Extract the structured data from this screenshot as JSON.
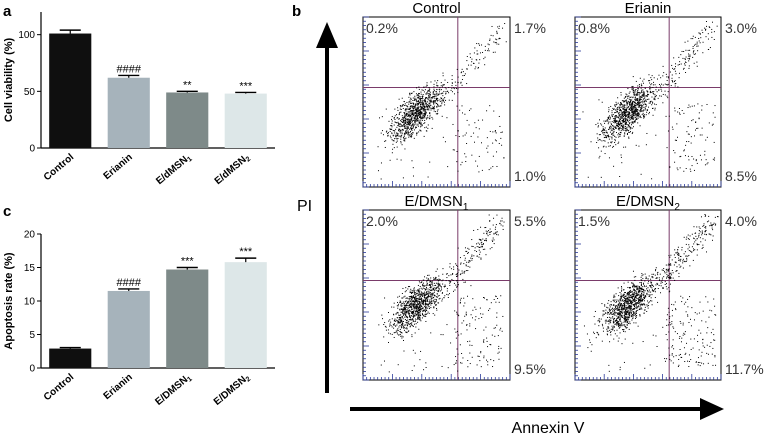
{
  "chart_data": [
    {
      "panel": "a",
      "type": "bar",
      "ylabel": "Cell viability (%)",
      "ylim": [
        0,
        120
      ],
      "yticks": [
        0,
        50,
        100
      ],
      "categories": [
        "Control",
        "Erianin",
        "E/dMSN1",
        "E/dMSN2"
      ],
      "values": [
        101,
        62,
        49,
        48
      ],
      "errors": [
        3,
        2,
        1,
        1
      ],
      "colors": [
        "#0f0f0f",
        "#a6b3bb",
        "#7e8a89",
        "#dde7e8"
      ],
      "annotations": [
        "",
        "####",
        "**",
        "***"
      ]
    },
    {
      "panel": "c",
      "type": "bar",
      "ylabel": "Apoptosis rate (%)",
      "ylim": [
        0,
        20
      ],
      "yticks": [
        0,
        5,
        10,
        15,
        20
      ],
      "categories": [
        "Control",
        "Erianin",
        "E/DMSN1",
        "E/DMSN2"
      ],
      "values": [
        2.9,
        11.5,
        14.7,
        15.8
      ],
      "errors": [
        0.15,
        0.3,
        0.3,
        0.6
      ],
      "colors": [
        "#0f0f0f",
        "#a6b3bb",
        "#7e8a89",
        "#dde7e8"
      ],
      "annotations": [
        "",
        "####",
        "***",
        "***"
      ]
    },
    {
      "panel": "b",
      "type": "scatter",
      "xlabel": "Annexin V",
      "ylabel": "PI",
      "plots": [
        {
          "title": "Control",
          "sub": "",
          "quadrants": {
            "UL": "0.2%",
            "UR": "1.7%",
            "LR": "1.0%"
          }
        },
        {
          "title": "Erianin",
          "sub": "",
          "quadrants": {
            "UL": "0.8%",
            "UR": "3.0%",
            "LR": "8.5%"
          }
        },
        {
          "title": "E/DMSN",
          "sub": "1",
          "quadrants": {
            "UL": "2.0%",
            "UR": "5.5%",
            "LR": "9.5%"
          }
        },
        {
          "title": "E/DMSN",
          "sub": "2",
          "quadrants": {
            "UL": "1.5%",
            "UR": "4.0%",
            "LR": "11.7%"
          }
        }
      ]
    }
  ],
  "labels": {
    "a": "a",
    "b": "b",
    "c": "c"
  }
}
